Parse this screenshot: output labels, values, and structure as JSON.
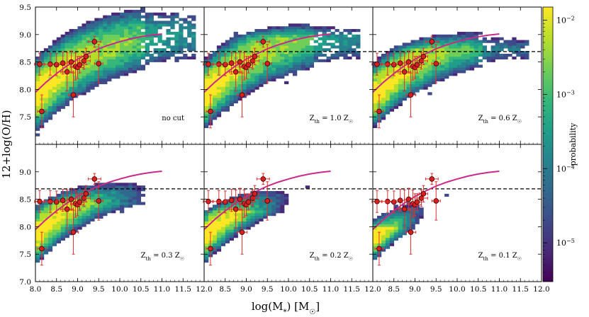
{
  "chart_data": {
    "type": "heatmap",
    "panel_count": 6,
    "xlabel": "log(M",
    "xlabel_sub": "*",
    "xlabel_tail": ") [M",
    "xlabel_sun": "☉",
    "xlabel_close": "]",
    "ylabel": "12+log(O/H)",
    "xlim": [
      8.0,
      12.0
    ],
    "ylim": [
      7.0,
      9.5
    ],
    "x_ticks": [
      8.0,
      8.5,
      9.0,
      9.5,
      10.0,
      10.5,
      11.0,
      11.5,
      12.0
    ],
    "x_tick_labels": [
      "8.0",
      "8.5",
      "9.0",
      "9.5",
      "10.0",
      "10.5",
      "11.0",
      "11.5",
      "12.0"
    ],
    "y_ticks": [
      7.0,
      7.5,
      8.0,
      8.5,
      9.0,
      9.5
    ],
    "y_tick_labels_top": [
      "7.5",
      "8.0",
      "8.5",
      "9.0",
      "9.5"
    ],
    "y_tick_labels_bottom": [
      "7.0",
      "7.5",
      "8.0",
      "8.5",
      "9.0"
    ],
    "reference_line_y": 8.69,
    "panel_labels": [
      "no cut",
      "Z",
      "Z",
      "Z",
      "Z",
      "Z"
    ],
    "panel_label_subs": [
      "",
      "th",
      "th",
      "th",
      "th",
      "th"
    ],
    "panel_label_tails": [
      "",
      " = 1.0 Z",
      " = 0.6 Z",
      " = 0.3 Z",
      " = 0.2 Z",
      " = 0.1 Z"
    ],
    "panel_label_sun": [
      "",
      "☉",
      "☉",
      "☉",
      "☉",
      "☉"
    ],
    "cut_values": [
      null,
      1.0,
      0.6,
      0.3,
      0.2,
      0.1
    ],
    "fit_curve": {
      "x": [
        8.0,
        8.25,
        8.5,
        8.75,
        9.0,
        9.25,
        9.5,
        9.75,
        10.0,
        10.25,
        10.5,
        10.75,
        11.0
      ],
      "y": [
        7.95,
        8.13,
        8.29,
        8.43,
        8.55,
        8.65,
        8.74,
        8.81,
        8.87,
        8.92,
        8.96,
        8.99,
        9.01
      ]
    },
    "observations": [
      {
        "x": 8.15,
        "y": 7.6,
        "xerr": 0.1,
        "yerr": 0.3
      },
      {
        "x": 8.1,
        "y": 8.46,
        "xerr": 0.12,
        "yerr": 0.2
      },
      {
        "x": 8.35,
        "y": 8.46,
        "xerr": 0.15,
        "yerr": 0.2
      },
      {
        "x": 8.5,
        "y": 8.45,
        "xerr": 0.2,
        "yerr": 0.2
      },
      {
        "x": 8.65,
        "y": 8.48,
        "xerr": 0.15,
        "yerr": 0.2
      },
      {
        "x": 8.75,
        "y": 8.32,
        "xerr": 0.15,
        "yerr": 0.35
      },
      {
        "x": 8.85,
        "y": 8.5,
        "xerr": 0.1,
        "yerr": 0.2
      },
      {
        "x": 8.9,
        "y": 7.9,
        "xerr": 0.12,
        "yerr": 0.4
      },
      {
        "x": 8.95,
        "y": 8.42,
        "xerr": 0.12,
        "yerr": 0.25
      },
      {
        "x": 9.0,
        "y": 8.4,
        "xerr": 0.15,
        "yerr": 0.2
      },
      {
        "x": 9.05,
        "y": 8.45,
        "xerr": 0.1,
        "yerr": 0.15
      },
      {
        "x": 9.15,
        "y": 8.52,
        "xerr": 0.15,
        "yerr": 0.15
      },
      {
        "x": 9.2,
        "y": 8.6,
        "xerr": 0.1,
        "yerr": 0.15
      },
      {
        "x": 9.4,
        "y": 8.87,
        "xerr": 0.15,
        "yerr": 0.1
      },
      {
        "x": 9.5,
        "y": 8.47,
        "xerr": 0.1,
        "yerr": 0.35
      }
    ],
    "colorbar": {
      "label": "probability",
      "scale": "log",
      "range": [
        3e-06,
        0.015
      ],
      "tick_labels": [
        {
          "base": "10",
          "exp": "−2",
          "value": 0.01
        },
        {
          "base": "10",
          "exp": "−3",
          "value": 0.001
        },
        {
          "base": "10",
          "exp": "−4",
          "value": 0.0001
        },
        {
          "base": "10",
          "exp": "−5",
          "value": 1e-05
        }
      ]
    },
    "colors": {
      "fit_line": "#c82a8c",
      "marker_fill": "#d62020",
      "error_bar": "#e03030",
      "reference_line": "#000000",
      "colormap": [
        "#440154",
        "#482878",
        "#3e4a89",
        "#31688e",
        "#26828e",
        "#1f9e89",
        "#35b779",
        "#6ece58",
        "#b5de2b",
        "#fde725"
      ]
    }
  }
}
